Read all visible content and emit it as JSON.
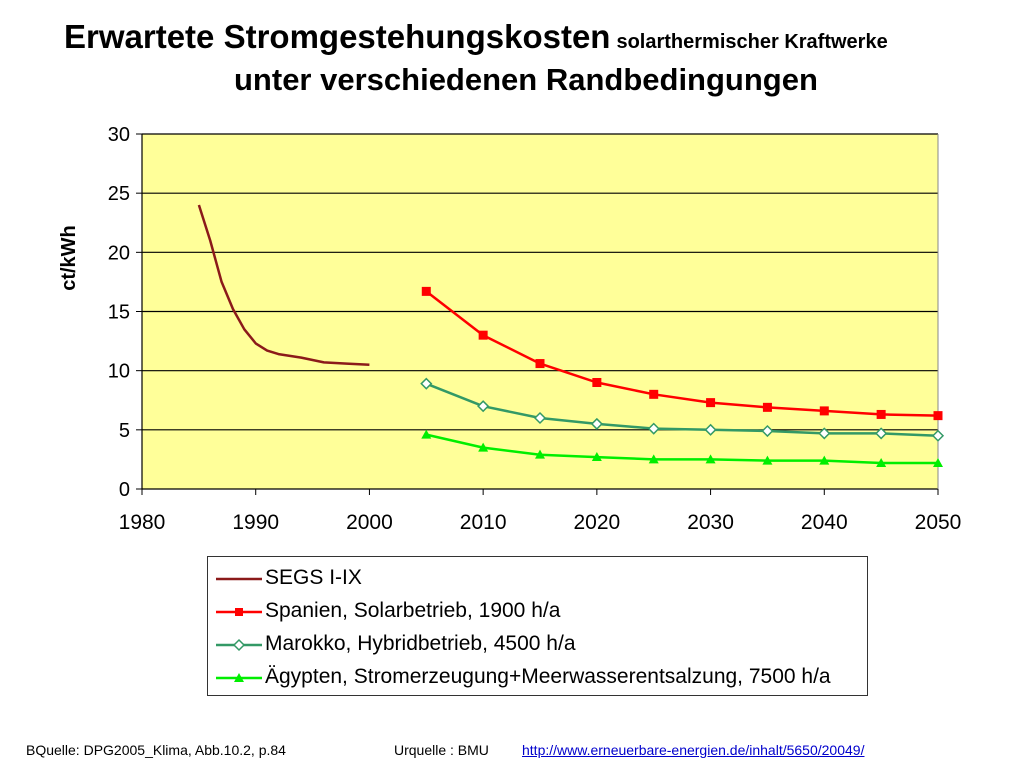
{
  "title": {
    "main": "Erwartete Stromgestehungskosten",
    "sub": "solarthermischer Kraftwerke",
    "line2": "unter verschiedenen Randbedingungen"
  },
  "chart_data": {
    "type": "line",
    "ylabel": "ct/kWh",
    "xlabel": "",
    "xlim": [
      1980,
      2050
    ],
    "ylim": [
      0,
      30
    ],
    "x_ticks": [
      "1980",
      "1990",
      "2000",
      "2010",
      "2020",
      "2030",
      "2040",
      "2050"
    ],
    "y_ticks": [
      "0",
      "5",
      "10",
      "15",
      "20",
      "25",
      "30"
    ],
    "plot_background": "#ffff99",
    "grid": "horizontal",
    "legend_position": "bottom",
    "series": [
      {
        "name": "SEGS I-IX",
        "color": "#8b1a1a",
        "marker": "none",
        "x": [
          1985,
          1986,
          1987,
          1988,
          1989,
          1990,
          1991,
          1992,
          1994,
          1996,
          1998,
          2000
        ],
        "y": [
          24.0,
          21.0,
          17.5,
          15.2,
          13.5,
          12.3,
          11.7,
          11.4,
          11.1,
          10.7,
          10.6,
          10.5
        ]
      },
      {
        "name": "Spanien, Solarbetrieb, 1900 h/a",
        "color": "#ff0000",
        "marker": "square",
        "x": [
          2005,
          2010,
          2015,
          2020,
          2025,
          2030,
          2035,
          2040,
          2045,
          2050
        ],
        "y": [
          16.7,
          13.0,
          10.6,
          9.0,
          8.0,
          7.3,
          6.9,
          6.6,
          6.3,
          6.2
        ]
      },
      {
        "name": "Marokko, Hybridbetrieb, 4500 h/a",
        "color": "#339966",
        "marker": "diamond",
        "x": [
          2005,
          2010,
          2015,
          2020,
          2025,
          2030,
          2035,
          2040,
          2045,
          2050
        ],
        "y": [
          8.9,
          7.0,
          6.0,
          5.5,
          5.1,
          5.0,
          4.9,
          4.7,
          4.7,
          4.5
        ]
      },
      {
        "name": "Ägypten, Stromerzeugung+Meerwasserentsalzung, 7500 h/a",
        "color": "#00ee00",
        "marker": "triangle",
        "x": [
          2005,
          2010,
          2015,
          2020,
          2025,
          2030,
          2035,
          2040,
          2045,
          2050
        ],
        "y": [
          4.6,
          3.5,
          2.9,
          2.7,
          2.5,
          2.5,
          2.4,
          2.4,
          2.2,
          2.2
        ]
      }
    ]
  },
  "footer": {
    "source1": "BQuelle: DPG2005_Klima, Abb.10.2, p.84",
    "source2_label": "Urquelle : BMU",
    "source2_link": "http://www.erneuerbare-energien.de/inhalt/5650/20049/"
  }
}
